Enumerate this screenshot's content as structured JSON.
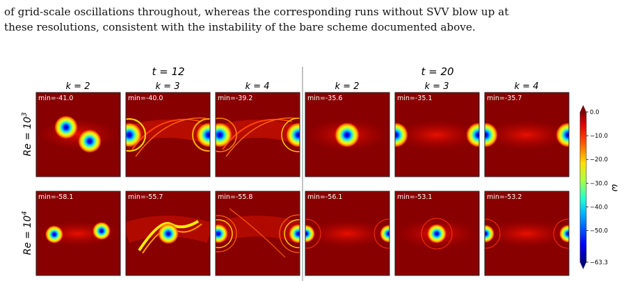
{
  "paragraph": {
    "line1": "of grid-scale oscillations throughout, whereas the corresponding runs without SVV blow up at",
    "line2": "these resolutions, consistent with the instability of the bare scheme documented above."
  },
  "figure": {
    "time_labels": [
      "t = 12",
      "t = 20"
    ],
    "k_labels": [
      "k = 2",
      "k = 3",
      "k = 4",
      "k = 2",
      "k = 3",
      "k = 4"
    ],
    "row_labels": [
      "Re = 10",
      "Re = 10"
    ],
    "row_label_exponents": [
      "3",
      "4"
    ],
    "min_labels": [
      [
        "min=-41.0",
        "min=-40.0",
        "min=-39.2",
        "min=-35.6",
        "min=-35.1",
        "min=-35.7"
      ],
      [
        "min=-58.1",
        "min=-55.7",
        "min=-55.8",
        "min=-56.1",
        "min=-53.1",
        "min=-53.2"
      ]
    ],
    "colorbar": {
      "label": "ω",
      "ticks": [
        "0.0",
        "−10.0",
        "−20.0",
        "−30.0",
        "−40.0",
        "−50.0",
        "−63.3"
      ],
      "tick_values": [
        0,
        -10,
        -20,
        -30,
        -40,
        -50,
        -63.3
      ],
      "range": [
        -63.3,
        0
      ],
      "colormap": "jet"
    }
  },
  "colors": {
    "field_background": "#880000",
    "text_on_panel": "#ffffff"
  }
}
